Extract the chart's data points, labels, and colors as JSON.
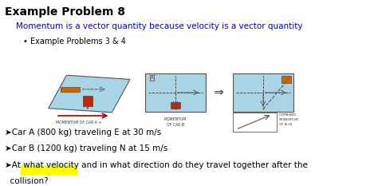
{
  "title": "Example Problem 8",
  "subtitle": "Momentum is a vector quantity because velocity is a vector quantity",
  "bullet": "Example Problems 3 & 4",
  "line1": "➤Car A (800 kg) traveling E at 30 m/s",
  "line2": "➤Car B (1200 kg) traveling N at 15 m/s",
  "line3": "➤At what velocity and in what direction do they travel together after the",
  "line3b": "  collision?",
  "title_color": "#000000",
  "subtitle_color": "#0000CC",
  "body_color": "#000000",
  "bg_color": "#ffffff",
  "highlight_color": "#FFFF00",
  "diagram_bg": "#a8d4e6"
}
